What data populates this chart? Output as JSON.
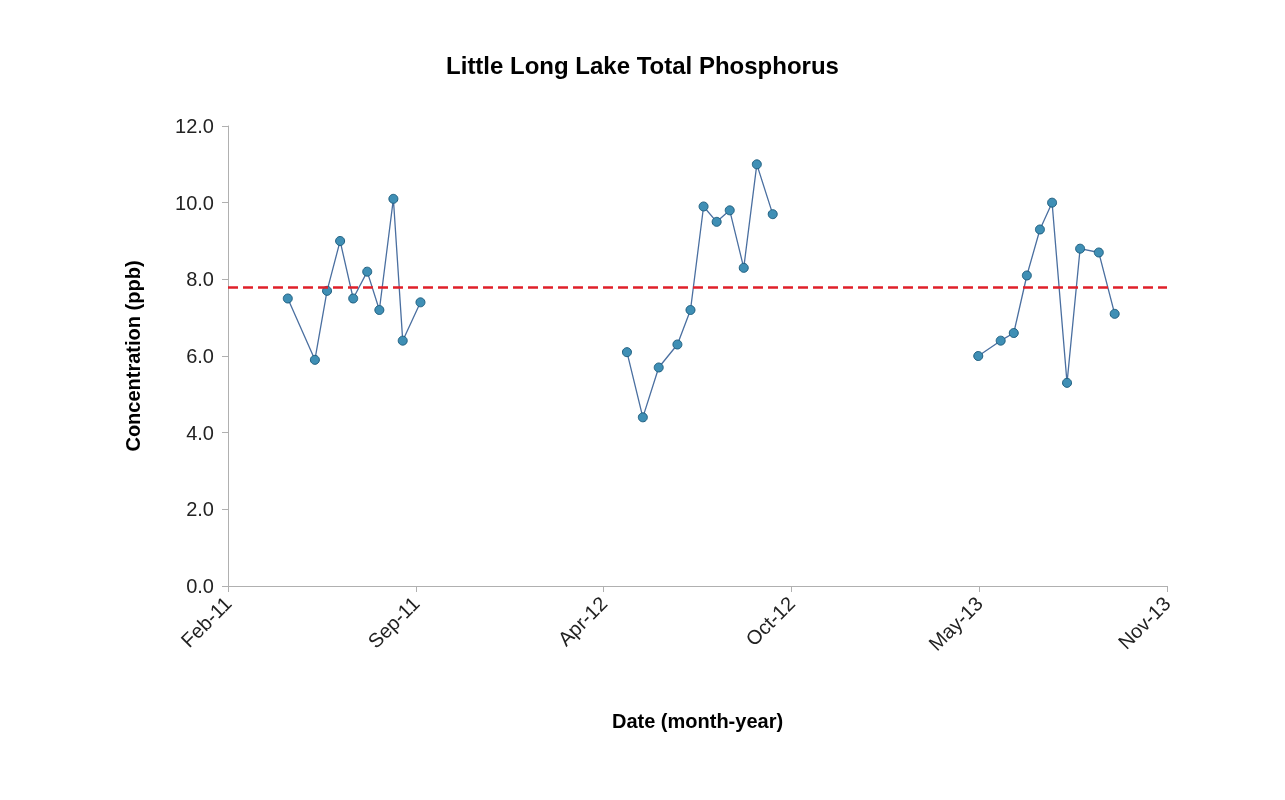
{
  "chart_data": {
    "type": "line",
    "title": "Little Long Lake Total Phosphorus",
    "xlabel": "Date (month-year)",
    "ylabel": "Concentration (ppb)",
    "series": [
      {
        "color": "#3f8fb5",
        "x": [
          "2011-04-30",
          "2011-05-29",
          "2011-06-11",
          "2011-06-25",
          "2011-07-09",
          "2011-07-24",
          "2011-08-06",
          "2011-08-21",
          "2011-08-31",
          "2011-09-19"
        ],
        "values": [
          7.5,
          5.9,
          7.7,
          9.0,
          7.5,
          8.2,
          7.2,
          10.1,
          6.4,
          7.4
        ]
      },
      {
        "color": "#3f8fb5",
        "x": [
          "2012-04-27",
          "2012-05-14",
          "2012-05-31",
          "2012-06-20",
          "2012-07-04",
          "2012-07-18",
          "2012-08-01",
          "2012-08-15",
          "2012-08-30",
          "2012-09-13",
          "2012-09-30"
        ],
        "values": [
          6.1,
          4.4,
          5.7,
          6.3,
          7.2,
          9.9,
          9.5,
          9.8,
          8.3,
          11.0,
          9.7
        ]
      },
      {
        "color": "#3f8fb5",
        "x": [
          "2013-05-08",
          "2013-06-01",
          "2013-06-15",
          "2013-06-29",
          "2013-07-13",
          "2013-07-26",
          "2013-08-11",
          "2013-08-25",
          "2013-09-14",
          "2013-10-01"
        ],
        "values": [
          6.0,
          6.4,
          6.6,
          8.1,
          9.3,
          10.0,
          5.3,
          8.8,
          8.7,
          7.1
        ]
      }
    ],
    "xlim": [
      "2011-02-25",
      "2013-11-26"
    ],
    "xticks": [
      {
        "value": "2011-02-25",
        "label": "Feb-11"
      },
      {
        "value": "2011-09-14",
        "label": "Sep-11"
      },
      {
        "value": "2012-04-02",
        "label": "Apr-12"
      },
      {
        "value": "2012-10-20",
        "label": "Oct-12"
      },
      {
        "value": "2013-05-09",
        "label": "May-13"
      },
      {
        "value": "2013-11-26",
        "label": "Nov-13"
      }
    ],
    "ylim": [
      0,
      12
    ],
    "yticks": [
      {
        "value": 0,
        "label": "0.0"
      },
      {
        "value": 2,
        "label": "2.0"
      },
      {
        "value": 4,
        "label": "4.0"
      },
      {
        "value": 6,
        "label": "6.0"
      },
      {
        "value": 8,
        "label": "8.0"
      },
      {
        "value": 10,
        "label": "10.0"
      },
      {
        "value": 12,
        "label": "12.0"
      }
    ],
    "ref_lines": [
      {
        "axis": "y",
        "value": 7.8,
        "color": "#e0202a",
        "line_style": "dashed"
      }
    ],
    "grid": false,
    "marker": "circle",
    "line_style": "solid"
  }
}
